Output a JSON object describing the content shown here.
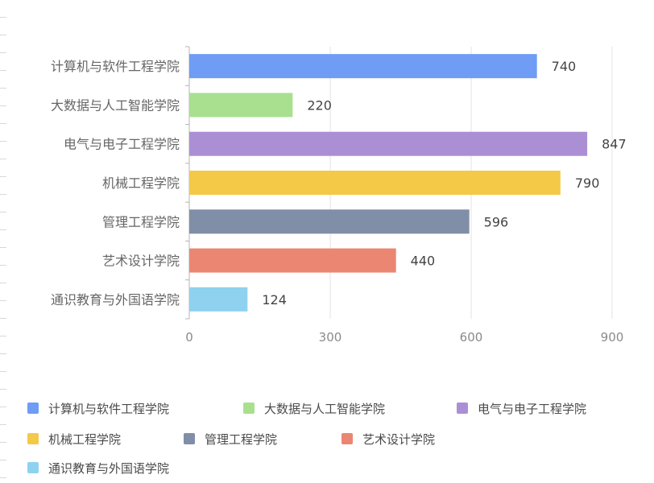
{
  "chart_data": {
    "type": "bar",
    "orientation": "horizontal",
    "categories": [
      "计算机与软件工程学院",
      "大数据与人工智能学院",
      "电气与电子工程学院",
      "机械工程学院",
      "管理工程学院",
      "艺术设计学院",
      "通识教育与外国语学院"
    ],
    "values": [
      740,
      220,
      847,
      790,
      596,
      440,
      124
    ],
    "colors": [
      "#6f9cf5",
      "#a8e08f",
      "#ab8fd5",
      "#f4c948",
      "#808ea7",
      "#ea8672",
      "#8ed2f0"
    ],
    "xlim": [
      0,
      900
    ],
    "xticks": [
      0,
      300,
      600,
      900
    ],
    "grid": true,
    "legend_position": "bottom",
    "title": "",
    "xlabel": "",
    "ylabel": ""
  }
}
